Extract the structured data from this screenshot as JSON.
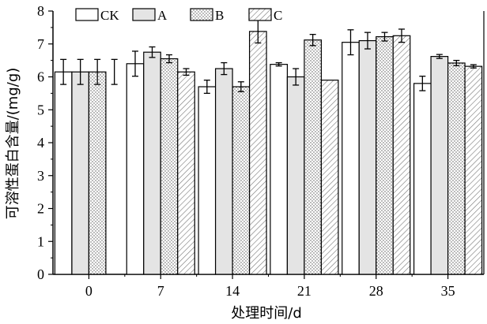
{
  "chart_data": {
    "type": "bar",
    "xlabel": "处理时间/d",
    "ylabel": "可溶性蛋白含量/(mg/g)",
    "ylim": [
      0,
      8
    ],
    "yticks": [
      0,
      1,
      2,
      3,
      4,
      5,
      6,
      7,
      8
    ],
    "categories": [
      "0",
      "7",
      "14",
      "21",
      "28",
      "35"
    ],
    "legend_position": "top",
    "series": [
      {
        "name": "CK",
        "pattern": "open",
        "values": [
          6.15,
          6.4,
          5.7,
          6.38,
          7.05,
          5.8
        ],
        "errors": [
          0.38,
          0.38,
          0.2,
          0.05,
          0.38,
          0.22
        ]
      },
      {
        "name": "A",
        "pattern": "lightgray",
        "values": [
          6.15,
          6.75,
          6.25,
          6.0,
          7.1,
          6.62
        ],
        "errors": [
          0.38,
          0.16,
          0.18,
          0.25,
          0.25,
          0.06
        ]
      },
      {
        "name": "B",
        "pattern": "dots",
        "values": [
          6.15,
          6.55,
          5.7,
          7.12,
          7.22,
          6.42
        ],
        "errors": [
          0.38,
          0.12,
          0.15,
          0.17,
          0.13,
          0.08
        ]
      },
      {
        "name": "C",
        "pattern": "hatch",
        "values": [
          6.15,
          6.15,
          7.38,
          5.9,
          7.25,
          6.32
        ],
        "errors": [
          0.38,
          0.1,
          0.35,
          0.0,
          0.2,
          0.05
        ]
      }
    ],
    "drawn_bars": {
      "0": [
        "CK",
        "A",
        "B"
      ]
    }
  }
}
